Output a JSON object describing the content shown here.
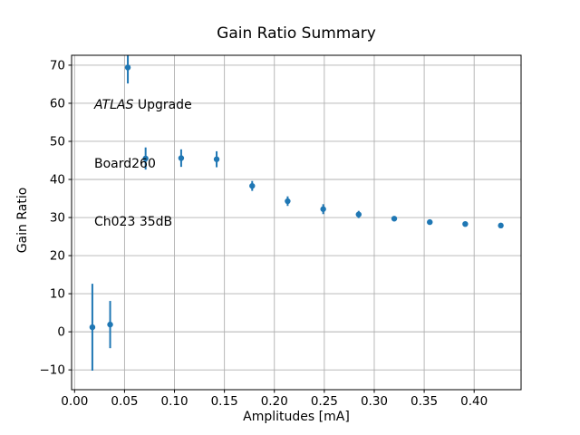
{
  "figure": {
    "title": "Gain Ratio Summary",
    "xlabel": "Amplitudes [mA]",
    "ylabel": "Gain Ratio",
    "annotation": {
      "line1_italic": "ATLAS",
      "line1_rest": " Upgrade",
      "line2": "Board260",
      "line3": "Ch023 35dB"
    }
  },
  "chart_data": {
    "type": "scatter",
    "title": "Gain Ratio Summary",
    "xlabel": "Amplitudes [mA]",
    "ylabel": "Gain Ratio",
    "legend": "none",
    "grid": true,
    "grid_color": "#b0b0b0",
    "marker_color": "#1f77b4",
    "frame_color": "#000000",
    "xlim": [
      -0.003,
      0.447
    ],
    "ylim": [
      -15.2,
      72.6
    ],
    "xticks": [
      0.0,
      0.05,
      0.1,
      0.15,
      0.2,
      0.25,
      0.3,
      0.35,
      0.4
    ],
    "xtick_labels": [
      "0.00",
      "0.05",
      "0.10",
      "0.15",
      "0.20",
      "0.25",
      "0.30",
      "0.35",
      "0.40"
    ],
    "yticks": [
      -10,
      0,
      10,
      20,
      30,
      40,
      50,
      60,
      70
    ],
    "ytick_labels": [
      "−10",
      "0",
      "10",
      "20",
      "30",
      "40",
      "50",
      "60",
      "70"
    ],
    "series": [
      {
        "name": "gain-ratio-errorbar",
        "x": [
          0.0178,
          0.0356,
          0.0533,
          0.0711,
          0.1067,
          0.1422,
          0.1778,
          0.2133,
          0.2489,
          0.2844,
          0.32,
          0.3556,
          0.3911,
          0.4267
        ],
        "y": [
          1.2,
          1.9,
          69.4,
          45.5,
          45.6,
          45.3,
          38.3,
          34.3,
          32.2,
          30.8,
          29.7,
          28.8,
          28.3,
          27.9
        ],
        "yerr": [
          11.4,
          6.2,
          4.2,
          2.9,
          2.3,
          2.1,
          1.3,
          1.25,
          1.3,
          0.95,
          0.55,
          0.5,
          0.45,
          0.4
        ]
      }
    ]
  }
}
